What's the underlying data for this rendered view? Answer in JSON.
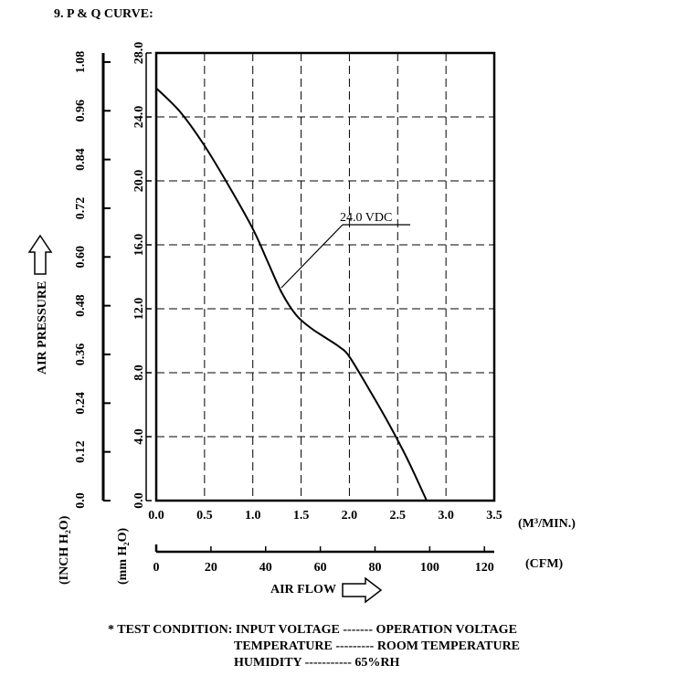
{
  "heading": "9. P & Q CURVE:",
  "chart_data": {
    "type": "line",
    "xlabel": "AIR FLOW",
    "ylabel": "AIR PRESSURE",
    "x_unit": "(M³/MIN.)",
    "x2_unit": "(CFM)",
    "y_unit_mm": "(mm H₂O)",
    "y_unit_inch": "(INCH H₂O)",
    "xlim": [
      0,
      3.5
    ],
    "ylim": [
      0,
      28
    ],
    "x_ticks": [
      "0.0",
      "0.5",
      "1.0",
      "1.5",
      "2.0",
      "2.5",
      "3.0",
      "3.5"
    ],
    "y_ticks_mm": [
      "0.0",
      "4.0",
      "8.0",
      "12.0",
      "16.0",
      "20.0",
      "24.0",
      "28.0"
    ],
    "y_ticks_inch": [
      "0.0",
      "0.12",
      "0.24",
      "0.36",
      "0.48",
      "0.60",
      "0.72",
      "0.84",
      "0.96",
      "1.08"
    ],
    "cfm_ticks": [
      "0",
      "20",
      "40",
      "60",
      "80",
      "100",
      "120"
    ],
    "grid": true,
    "series": [
      {
        "name": "24.0 VDC",
        "x": [
          0.0,
          0.25,
          0.5,
          0.75,
          1.0,
          1.15,
          1.3,
          1.45,
          1.6,
          1.75,
          1.9,
          2.0,
          2.2,
          2.4,
          2.6,
          2.8
        ],
        "y": [
          25.8,
          24.3,
          22.2,
          19.7,
          17.0,
          15.0,
          13.0,
          11.6,
          10.8,
          10.2,
          9.6,
          9.0,
          7.0,
          4.9,
          2.6,
          0.0
        ]
      }
    ]
  },
  "annotation_label": "24.0 VDC",
  "test_condition": {
    "line1": "* TEST CONDITION: INPUT VOLTAGE ------- OPERATION VOLTAGE",
    "line2": "TEMPERATURE --------- ROOM TEMPERATURE",
    "line3": "HUMIDITY ----------- 65%RH"
  }
}
